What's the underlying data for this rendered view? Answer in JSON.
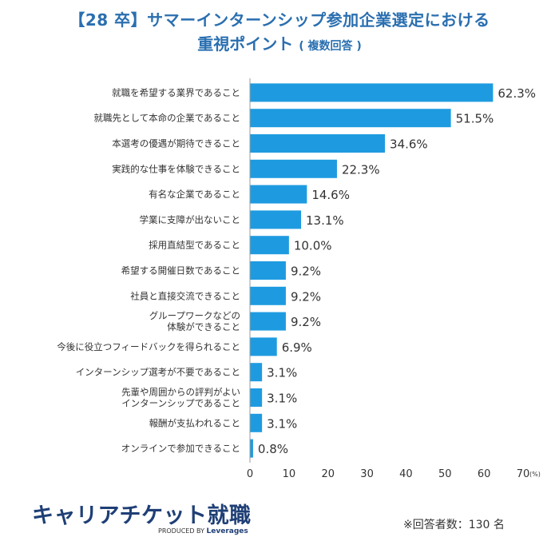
{
  "title": {
    "line1": "【28 卒】サマーインターンシップ参加企業選定における",
    "line2": "重視ポイント",
    "line2_sub": "( 複数回答 )"
  },
  "chart_data": {
    "type": "bar",
    "orientation": "horizontal",
    "categories": [
      [
        "就職を希望する業界であること"
      ],
      [
        "就職先として本命の企業であること"
      ],
      [
        "本選考の優遇が期待できること"
      ],
      [
        "実践的な仕事を体験できること"
      ],
      [
        "有名な企業であること"
      ],
      [
        "学業に支障が出ないこと"
      ],
      [
        "採用直結型であること"
      ],
      [
        "希望する開催日数であること"
      ],
      [
        "社員と直接交流できること"
      ],
      [
        "グループワークなどの",
        "体験ができること"
      ],
      [
        "今後に役立つフィードバックを得られること"
      ],
      [
        "インターンシップ選考が不要であること"
      ],
      [
        "先輩や周囲からの評判がよい",
        "インターンシップであること"
      ],
      [
        "報酬が支払われること"
      ],
      [
        "オンラインで参加できること"
      ]
    ],
    "values": [
      62.3,
      51.5,
      34.6,
      22.3,
      14.6,
      13.1,
      10.0,
      9.2,
      9.2,
      9.2,
      6.9,
      3.1,
      3.1,
      3.1,
      0.8
    ],
    "value_labels": [
      "62.3%",
      "51.5%",
      "34.6%",
      "22.3%",
      "14.6%",
      "13.1%",
      "10.0%",
      "9.2%",
      "9.2%",
      "9.2%",
      "6.9%",
      "3.1%",
      "3.1%",
      "3.1%",
      "0.8%"
    ],
    "xlim": [
      0,
      70
    ],
    "xticks": [
      0,
      10,
      20,
      30,
      40,
      50,
      60,
      70
    ],
    "x_unit": "(%)",
    "bar_color": "#1e9be0",
    "grid": false
  },
  "brand": {
    "logo_text": "キャリアチケット就職",
    "produced_by": "PRODUCED BY",
    "company": "Leverages"
  },
  "note": "※回答者数：130 名"
}
